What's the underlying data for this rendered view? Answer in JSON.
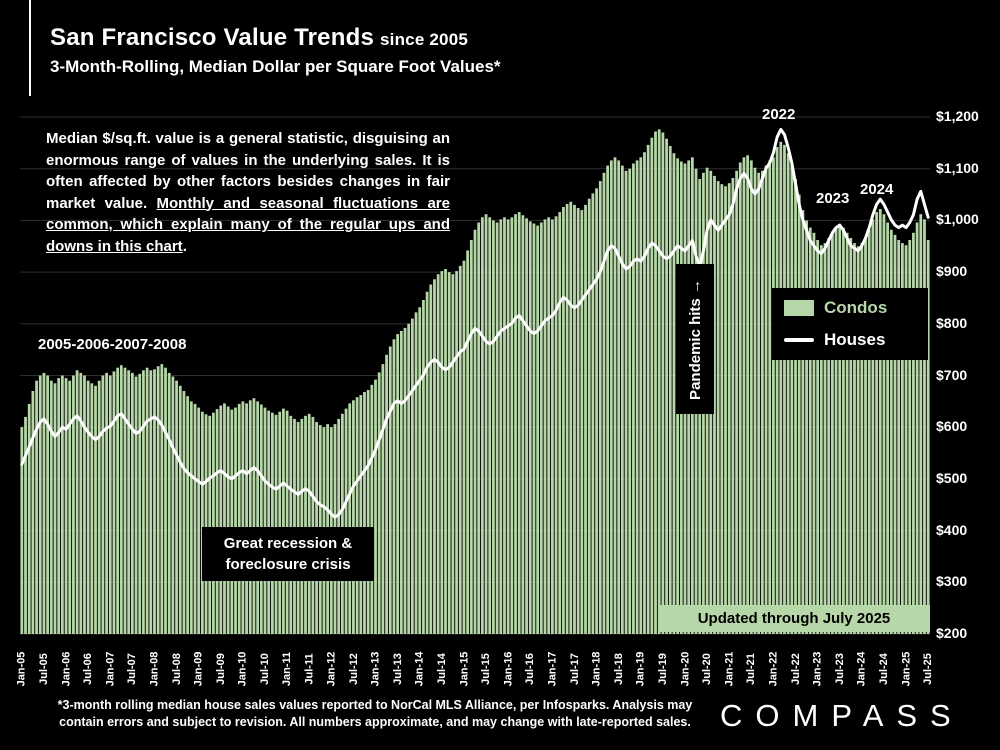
{
  "header": {
    "title": "San Francisco Value Trends",
    "title_suffix": "since 2005",
    "subtitle": "3-Month-Rolling, Median Dollar per Square Foot Values*"
  },
  "annotations": {
    "note_main": "Median $/sq.ft. value is a general statistic, disguising an enormous range of values in the underlying sales. It is often affected by other factors besides changes in fair market value. ",
    "note_underline": "Monthly and seasonal fluctuations are common, which explain many of the regular ups and downs in this chart",
    "note_end": ".",
    "era_label": "2005-2006-2007-2008",
    "recession_line1": "Great recession &",
    "recession_line2": "foreclosure crisis",
    "pandemic_label": "Pandemic hits →",
    "peak_2022": "2022",
    "label_2023": "2023",
    "label_2024": "2024",
    "updated_banner": "Updated through July 2025"
  },
  "legend": {
    "condos": "Condos",
    "houses": "Houses"
  },
  "colors": {
    "bars": "#b6d7a8",
    "line": "#ffffff",
    "legend_condos_text": "#b6d7a8",
    "banner_bg": "#b6d7a8",
    "grid": "#2e2e2e"
  },
  "footer": {
    "disclaimer_line1": "*3-month rolling median house sales values reported to NorCal MLS Alliance, per Infosparks. Analysis may",
    "disclaimer_line2": "contain errors and subject to revision. All numbers approximate, and may change with late-reported sales.",
    "logo": "COMPASS"
  },
  "chart_data": {
    "type": "bar+line",
    "title": "San Francisco Value Trends since 2005",
    "subtitle": "3-Month-Rolling, Median Dollar per Square Foot Values",
    "ylabel": "Median $/sq.ft.",
    "ylim": [
      200,
      1200
    ],
    "grid": true,
    "legend_position": "middle-right",
    "y_ticks": [
      "$1,200",
      "$1,100",
      "$1,000",
      "$900",
      "$800",
      "$700",
      "$600",
      "$500",
      "$400",
      "$300",
      "$200"
    ],
    "x_labels": [
      "Jan-05",
      "Jul-05",
      "Jan-06",
      "Jul-06",
      "Jan-07",
      "Jul-07",
      "Jan-08",
      "Jul-08",
      "Jan-09",
      "Jul-09",
      "Jan-10",
      "Jul-10",
      "Jan-11",
      "Jul-11",
      "Jan-12",
      "Jul-12",
      "Jan-13",
      "Jul-13",
      "Jan-14",
      "Jul-14",
      "Jan-15",
      "Jul-15",
      "Jan-16",
      "Jul-16",
      "Jan-17",
      "Jul-17",
      "Jan-18",
      "Jul-18",
      "Jan-19",
      "Jul-19",
      "Jan-20",
      "Jul-20",
      "Jan-21",
      "Jul-21",
      "Jan-22",
      "Jul-22",
      "Jan-23",
      "Jul-23",
      "Jan-24",
      "Jul-24",
      "Jan-25",
      "Jul-25"
    ],
    "x_label_interval_months": 6,
    "series": [
      {
        "name": "Condos",
        "type": "bar",
        "color": "#b6d7a8",
        "values": [
          600,
          620,
          645,
          670,
          690,
          700,
          705,
          700,
          690,
          685,
          695,
          700,
          695,
          690,
          700,
          710,
          705,
          700,
          690,
          685,
          680,
          690,
          700,
          705,
          700,
          708,
          715,
          720,
          715,
          710,
          705,
          698,
          703,
          710,
          715,
          710,
          712,
          718,
          722,
          715,
          705,
          698,
          690,
          680,
          670,
          660,
          650,
          645,
          638,
          630,
          625,
          622,
          628,
          635,
          642,
          646,
          640,
          634,
          638,
          645,
          650,
          646,
          652,
          656,
          650,
          644,
          638,
          632,
          628,
          624,
          630,
          636,
          632,
          622,
          616,
          610,
          616,
          622,
          626,
          620,
          610,
          604,
          600,
          606,
          600,
          606,
          616,
          626,
          636,
          646,
          652,
          658,
          662,
          668,
          672,
          682,
          692,
          706,
          722,
          740,
          756,
          770,
          780,
          786,
          792,
          800,
          810,
          822,
          832,
          846,
          862,
          876,
          886,
          896,
          902,
          906,
          900,
          896,
          902,
          912,
          922,
          942,
          962,
          982,
          996,
          1006,
          1012,
          1006,
          1000,
          996,
          1002,
          1006,
          1002,
          1006,
          1012,
          1016,
          1010,
          1004,
          998,
          994,
          990,
          996,
          1002,
          1006,
          1002,
          1008,
          1016,
          1026,
          1032,
          1036,
          1030,
          1024,
          1020,
          1030,
          1042,
          1052,
          1062,
          1076,
          1092,
          1106,
          1116,
          1122,
          1116,
          1106,
          1096,
          1100,
          1110,
          1116,
          1122,
          1132,
          1146,
          1160,
          1172,
          1176,
          1170,
          1158,
          1144,
          1130,
          1120,
          1114,
          1110,
          1116,
          1122,
          1100,
          1080,
          1092,
          1102,
          1096,
          1086,
          1076,
          1070,
          1066,
          1072,
          1082,
          1096,
          1112,
          1122,
          1126,
          1116,
          1102,
          1092,
          1096,
          1106,
          1116,
          1122,
          1142,
          1152,
          1146,
          1130,
          1110,
          1080,
          1050,
          1020,
          1000,
          986,
          976,
          962,
          952,
          956,
          966,
          976,
          986,
          992,
          986,
          976,
          966,
          956,
          950,
          956,
          966,
          982,
          1002,
          1016,
          1022,
          1012,
          996,
          982,
          972,
          962,
          956,
          952,
          962,
          976,
          996,
          1012,
          1002,
          962
        ]
      },
      {
        "name": "Houses",
        "type": "line",
        "color": "#ffffff",
        "values": [
          528,
          545,
          562,
          580,
          596,
          610,
          616,
          606,
          592,
          582,
          590,
          600,
          596,
          606,
          616,
          622,
          612,
          600,
          590,
          582,
          576,
          582,
          592,
          598,
          602,
          612,
          622,
          626,
          616,
          606,
          596,
          588,
          592,
          602,
          612,
          616,
          620,
          614,
          604,
          590,
          576,
          560,
          546,
          532,
          520,
          512,
          506,
          500,
          495,
          490,
          495,
          502,
          506,
          512,
          516,
          510,
          504,
          500,
          506,
          512,
          516,
          510,
          516,
          522,
          516,
          506,
          496,
          490,
          484,
          480,
          486,
          492,
          486,
          480,
          475,
          470,
          476,
          481,
          476,
          466,
          456,
          450,
          446,
          440,
          432,
          426,
          431,
          441,
          456,
          471,
          486,
          496,
          506,
          516,
          526,
          541,
          556,
          576,
          596,
          616,
          631,
          646,
          651,
          646,
          651,
          661,
          671,
          681,
          691,
          701,
          716,
          726,
          731,
          726,
          716,
          711,
          716,
          726,
          736,
          746,
          751,
          766,
          781,
          791,
          786,
          776,
          766,
          761,
          766,
          776,
          786,
          791,
          796,
          801,
          811,
          816,
          806,
          796,
          786,
          781,
          786,
          796,
          806,
          811,
          816,
          826,
          841,
          851,
          846,
          836,
          831,
          836,
          846,
          856,
          866,
          876,
          886,
          901,
          921,
          941,
          951,
          946,
          931,
          916,
          906,
          911,
          921,
          926,
          921,
          931,
          946,
          956,
          951,
          941,
          931,
          926,
          931,
          941,
          951,
          946,
          941,
          951,
          961,
          931,
          911,
          941,
          981,
          1001,
          991,
          981,
          991,
          1001,
          1011,
          1031,
          1061,
          1081,
          1091,
          1081,
          1061,
          1051,
          1061,
          1081,
          1101,
          1111,
          1131,
          1161,
          1176,
          1166,
          1141,
          1111,
          1071,
          1031,
          1001,
          981,
          961,
          951,
          941,
          936,
          946,
          961,
          976,
          986,
          991,
          981,
          966,
          951,
          946,
          941,
          951,
          966,
          986,
          1011,
          1031,
          1041,
          1031,
          1016,
          1001,
          991,
          986,
          991,
          986,
          996,
          1011,
          1041,
          1056,
          1031,
          1006
        ]
      }
    ]
  }
}
